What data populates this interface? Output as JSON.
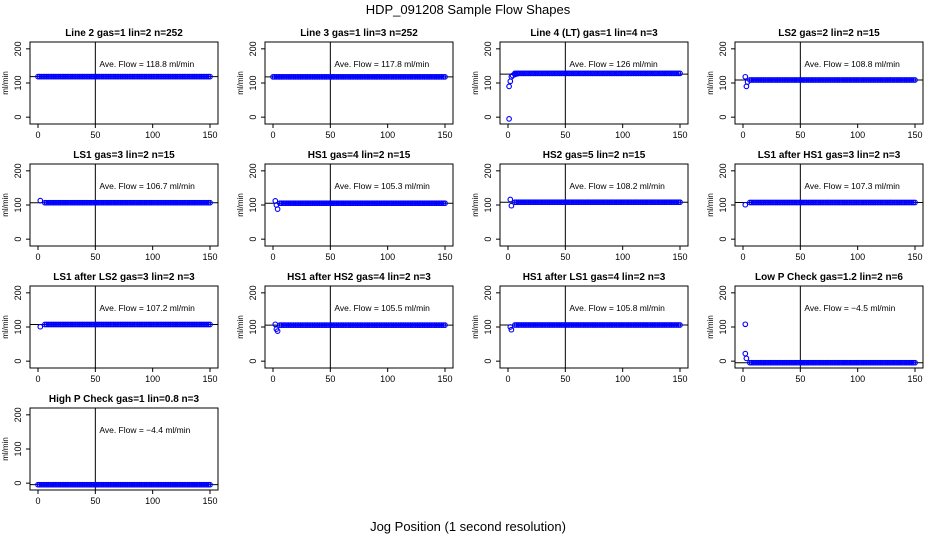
{
  "title": "HDP_091208  Sample Flow Shapes",
  "x_axis_title": "Jog Position (1 second resolution)",
  "colors": {
    "points": "#0000ff",
    "axis": "#000000"
  },
  "chart_data": [
    {
      "type": "scatter",
      "title": "Line 2 gas=1 lin=2 n=252",
      "ylabel": "ml/min",
      "xlim": [
        0,
        150
      ],
      "ylim": [
        -20,
        220
      ],
      "xticks": [
        0,
        50,
        100,
        150
      ],
      "yticks": [
        0,
        100,
        200
      ],
      "vline": 50,
      "hline": 118.8,
      "avg_label": "Ave. Flow =  118.8  ml/min",
      "level": 118.8,
      "start_points": []
    },
    {
      "type": "scatter",
      "title": "Line 3 gas=1 lin=3 n=252",
      "ylabel": "ml/min",
      "xlim": [
        0,
        150
      ],
      "ylim": [
        -20,
        220
      ],
      "xticks": [
        0,
        50,
        100,
        150
      ],
      "yticks": [
        0,
        100,
        200
      ],
      "vline": 50,
      "hline": 117.8,
      "avg_label": "Ave. Flow =  117.8  ml/min",
      "level": 117.8,
      "start_points": []
    },
    {
      "type": "scatter",
      "title": "Line 4 (LT) gas=1 lin=4 n=3",
      "ylabel": "ml/min",
      "xlim": [
        0,
        150
      ],
      "ylim": [
        -20,
        220
      ],
      "xticks": [
        0,
        50,
        100,
        150
      ],
      "yticks": [
        0,
        100,
        200
      ],
      "vline": 50,
      "hline": 126,
      "avg_label": "Ave. Flow =  126  ml/min",
      "level": 128,
      "start_points": [
        [
          1,
          -5
        ],
        [
          1,
          90
        ],
        [
          2,
          105
        ],
        [
          3,
          118
        ],
        [
          4,
          122
        ],
        [
          6,
          125
        ],
        [
          8,
          127
        ]
      ]
    },
    {
      "type": "scatter",
      "title": "LS2 gas=2 lin=2 n=15",
      "ylabel": "ml/min",
      "xlim": [
        0,
        150
      ],
      "ylim": [
        -20,
        220
      ],
      "xticks": [
        0,
        50,
        100,
        150
      ],
      "yticks": [
        0,
        100,
        200
      ],
      "vline": 50,
      "hline": 108.8,
      "avg_label": "Ave. Flow =  108.8  ml/min",
      "level": 108.8,
      "start_points": [
        [
          2,
          118
        ],
        [
          3,
          90
        ],
        [
          4,
          103
        ]
      ]
    },
    {
      "type": "scatter",
      "title": "LS1 gas=3 lin=2 n=15",
      "ylabel": "ml/min",
      "xlim": [
        0,
        150
      ],
      "ylim": [
        -20,
        220
      ],
      "xticks": [
        0,
        50,
        100,
        150
      ],
      "yticks": [
        0,
        100,
        200
      ],
      "vline": 50,
      "hline": 106.7,
      "avg_label": "Ave. Flow =  106.7  ml/min",
      "level": 106.7,
      "start_points": [
        [
          2,
          113
        ]
      ]
    },
    {
      "type": "scatter",
      "title": "HS1 gas=4 lin=2 n=15",
      "ylabel": "ml/min",
      "xlim": [
        0,
        150
      ],
      "ylim": [
        -20,
        220
      ],
      "xticks": [
        0,
        50,
        100,
        150
      ],
      "yticks": [
        0,
        100,
        200
      ],
      "vline": 50,
      "hline": 105.3,
      "avg_label": "Ave. Flow =  105.3  ml/min",
      "level": 105.3,
      "start_points": [
        [
          2,
          112
        ],
        [
          3,
          100
        ],
        [
          4,
          88
        ]
      ]
    },
    {
      "type": "scatter",
      "title": "HS2 gas=5 lin=2 n=15",
      "ylabel": "ml/min",
      "xlim": [
        0,
        150
      ],
      "ylim": [
        -20,
        220
      ],
      "xticks": [
        0,
        50,
        100,
        150
      ],
      "yticks": [
        0,
        100,
        200
      ],
      "vline": 50,
      "hline": 108.2,
      "avg_label": "Ave. Flow =  108.2  ml/min",
      "level": 108.2,
      "start_points": [
        [
          2,
          116
        ],
        [
          3,
          98
        ]
      ]
    },
    {
      "type": "scatter",
      "title": "LS1 after HS1 gas=3 lin=2 n=3",
      "ylabel": "ml/min",
      "xlim": [
        0,
        150
      ],
      "ylim": [
        -20,
        220
      ],
      "xticks": [
        0,
        50,
        100,
        150
      ],
      "yticks": [
        0,
        100,
        200
      ],
      "vline": 50,
      "hline": 107.3,
      "avg_label": "Ave. Flow =  107.3  ml/min",
      "level": 107.3,
      "start_points": [
        [
          2,
          101
        ]
      ]
    },
    {
      "type": "scatter",
      "title": "LS1 after LS2 gas=3 lin=2 n=3",
      "ylabel": "ml/min",
      "xlim": [
        0,
        150
      ],
      "ylim": [
        -20,
        220
      ],
      "xticks": [
        0,
        50,
        100,
        150
      ],
      "yticks": [
        0,
        100,
        200
      ],
      "vline": 50,
      "hline": 107.2,
      "avg_label": "Ave. Flow =  107.2  ml/min",
      "level": 107.2,
      "start_points": [
        [
          2,
          101
        ]
      ]
    },
    {
      "type": "scatter",
      "title": "HS1 after HS2 gas=4 lin=2 n=3",
      "ylabel": "ml/min",
      "xlim": [
        0,
        150
      ],
      "ylim": [
        -20,
        220
      ],
      "xticks": [
        0,
        50,
        100,
        150
      ],
      "yticks": [
        0,
        100,
        200
      ],
      "vline": 50,
      "hline": 105.5,
      "avg_label": "Ave. Flow =  105.5  ml/min",
      "level": 105.5,
      "start_points": [
        [
          2,
          108
        ],
        [
          3,
          94
        ],
        [
          4,
          88
        ]
      ]
    },
    {
      "type": "scatter",
      "title": "HS1 after LS1 gas=4 lin=2 n=3",
      "ylabel": "ml/min",
      "xlim": [
        0,
        150
      ],
      "ylim": [
        -20,
        220
      ],
      "xticks": [
        0,
        50,
        100,
        150
      ],
      "yticks": [
        0,
        100,
        200
      ],
      "vline": 50,
      "hline": 105.8,
      "avg_label": "Ave. Flow =  105.8  ml/min",
      "level": 105.8,
      "start_points": [
        [
          2,
          100
        ],
        [
          3,
          92
        ]
      ]
    },
    {
      "type": "scatter",
      "title": "Low P Check gas=1.2 lin=2 n=6",
      "ylabel": "ml/min",
      "xlim": [
        0,
        150
      ],
      "ylim": [
        -20,
        220
      ],
      "xticks": [
        0,
        50,
        100,
        150
      ],
      "yticks": [
        0,
        100,
        200
      ],
      "vline": 50,
      "hline": -4.5,
      "avg_label": "Ave. Flow =  −4.5  ml/min",
      "level": -4.5,
      "start_points": [
        [
          2,
          108
        ],
        [
          2,
          22
        ],
        [
          3,
          8
        ]
      ]
    },
    {
      "type": "scatter",
      "title": "High P Check gas=1 lin=0.8 n=3",
      "ylabel": "ml/min",
      "xlim": [
        0,
        150
      ],
      "ylim": [
        -20,
        220
      ],
      "xticks": [
        0,
        50,
        100,
        150
      ],
      "yticks": [
        0,
        100,
        200
      ],
      "vline": 50,
      "hline": -4.4,
      "avg_label": "Ave. Flow =  −4.4  ml/min",
      "level": -4.4,
      "start_points": []
    }
  ]
}
